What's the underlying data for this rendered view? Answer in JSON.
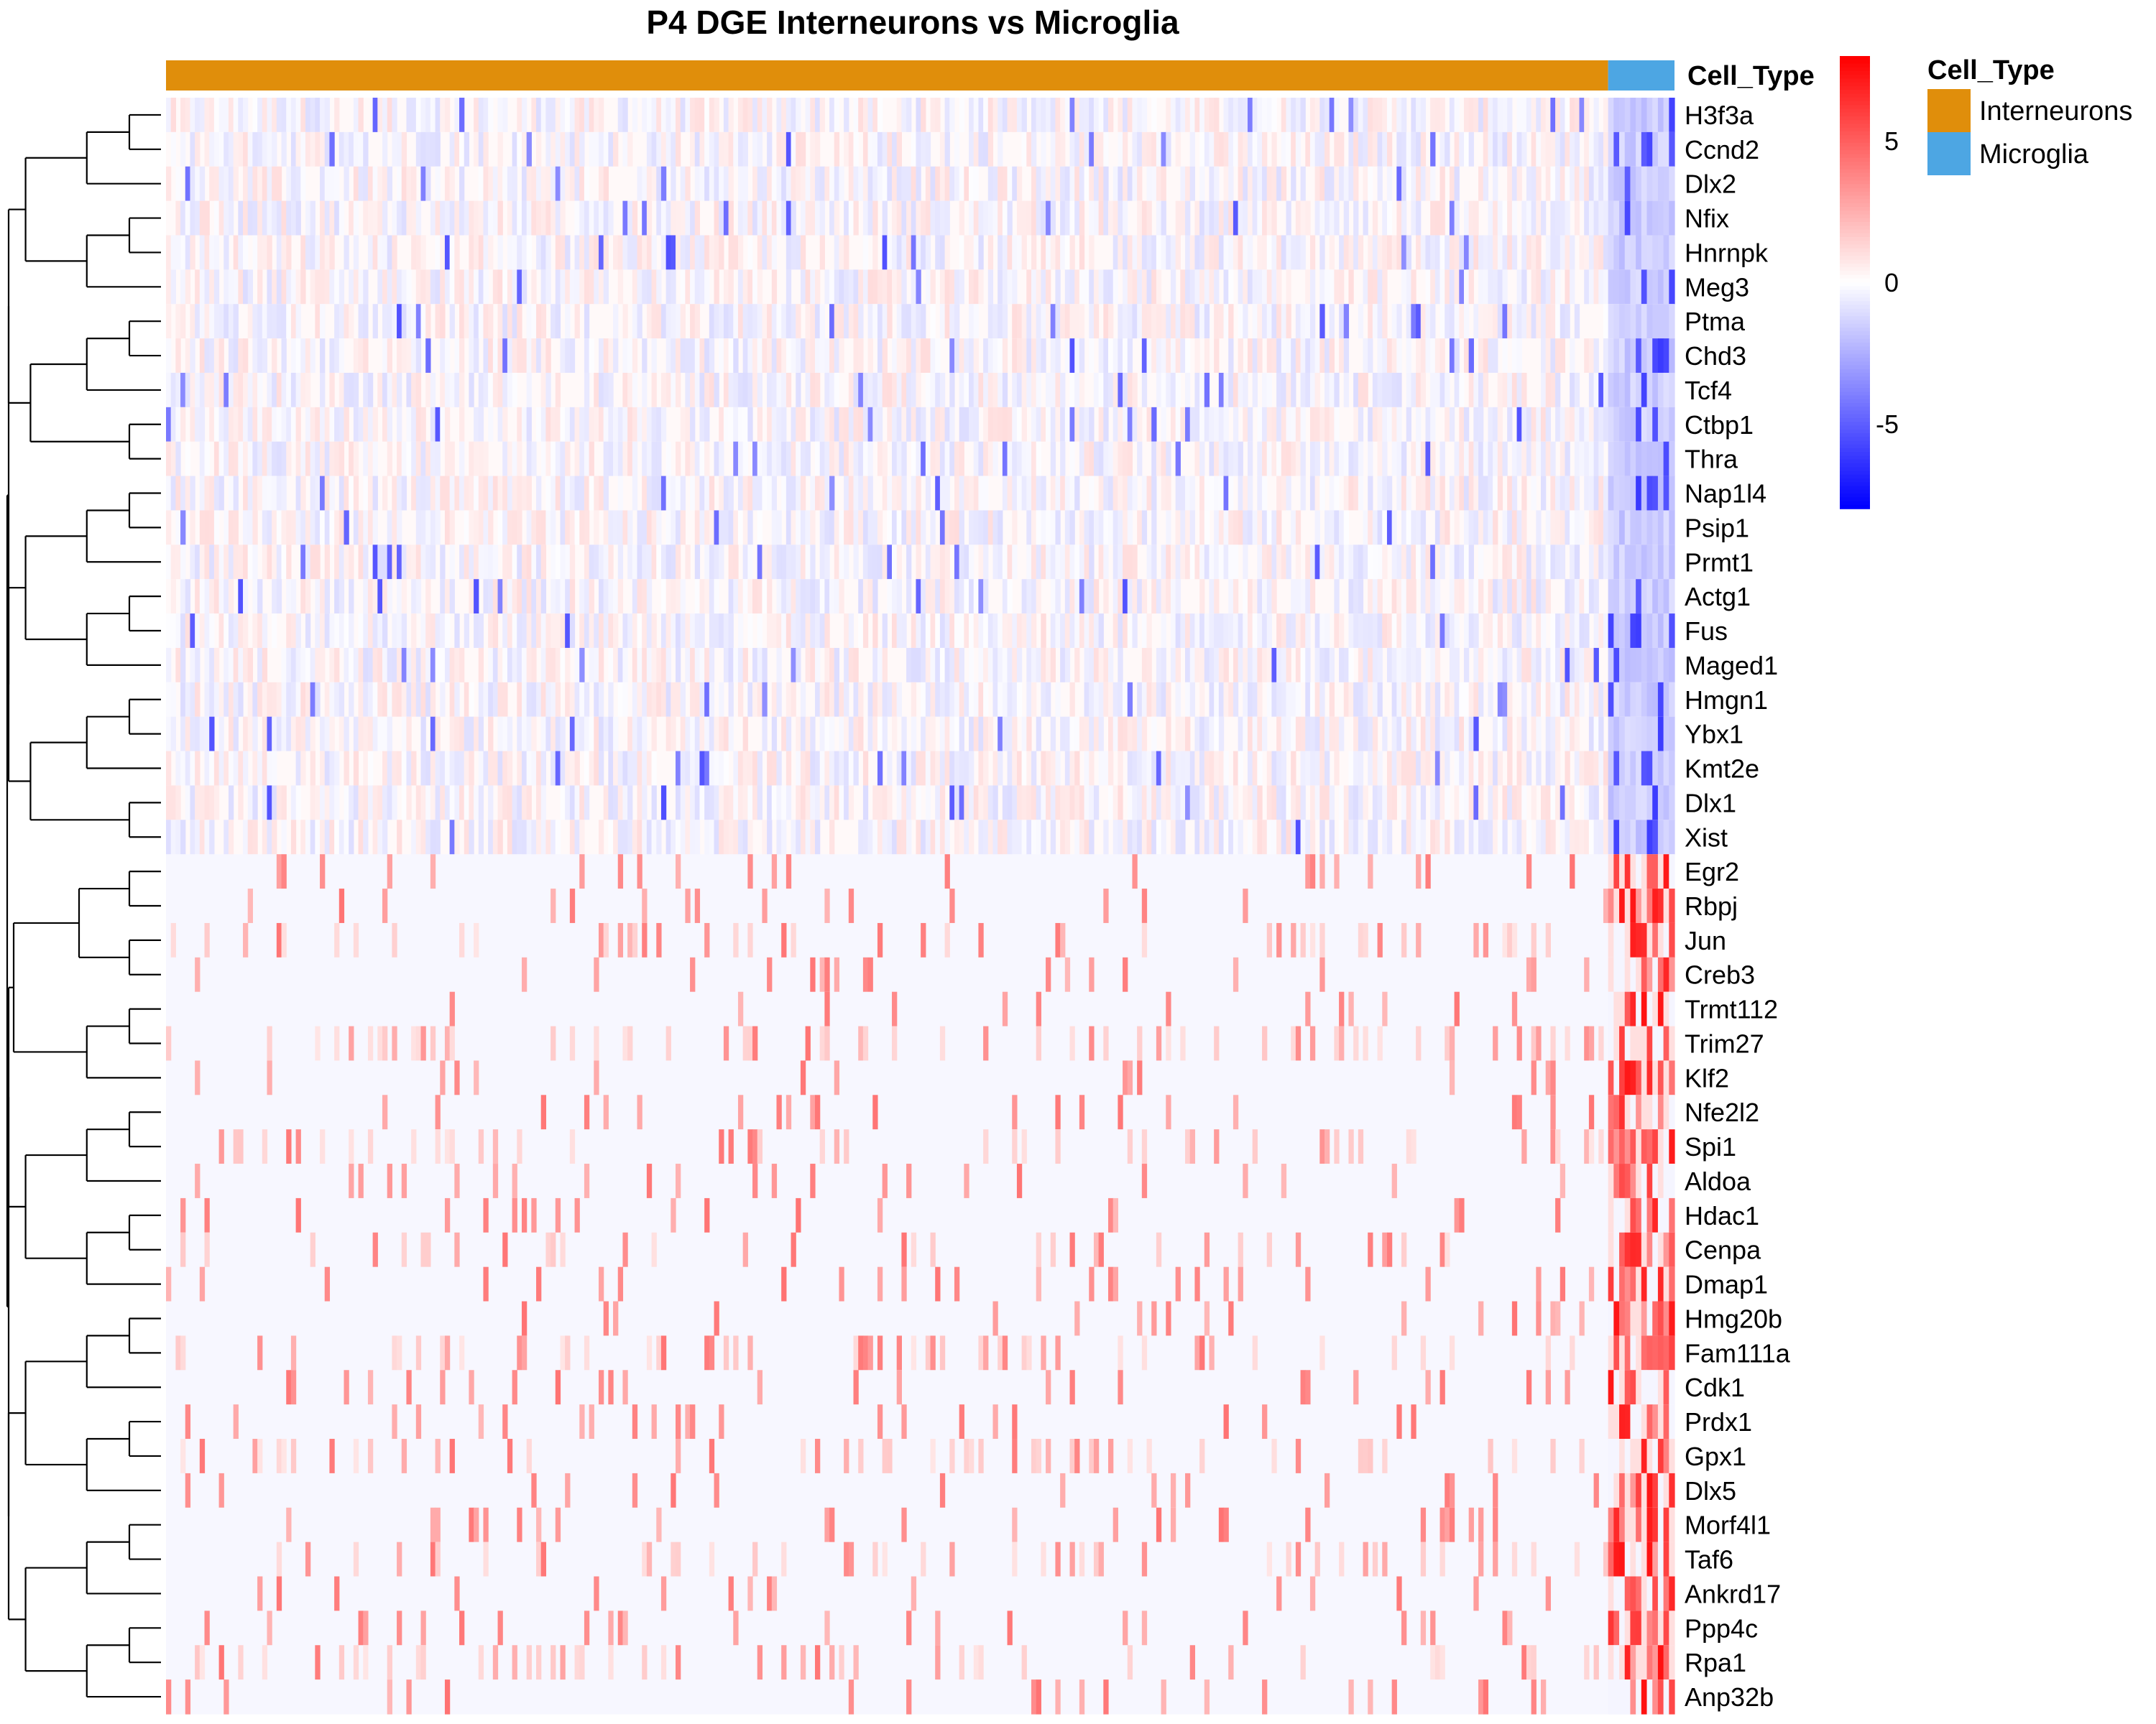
{
  "chart_data": {
    "type": "heatmap",
    "title": "P4 DGE Interneurons vs Microglia",
    "rows": [
      "H3f3a",
      "Ccnd2",
      "Dlx2",
      "Nfix",
      "Hnrnpk",
      "Meg3",
      "Ptma",
      "Chd3",
      "Tcf4",
      "Ctbp1",
      "Thra",
      "Nap1l4",
      "Psip1",
      "Prmt1",
      "Actg1",
      "Fus",
      "Maged1",
      "Hmgn1",
      "Ybx1",
      "Kmt2e",
      "Dlx1",
      "Xist",
      "Egr2",
      "Rbpj",
      "Jun",
      "Creb3",
      "Trmt112",
      "Trim27",
      "Klf2",
      "Nfe2l2",
      "Spi1",
      "Aldoa",
      "Hdac1",
      "Cenpa",
      "Dmap1",
      "Hmg20b",
      "Fam111a",
      "Cdk1",
      "Prdx1",
      "Gpx1",
      "Dlx5",
      "Morf4l1",
      "Taf6",
      "Ankrd17",
      "Ppp4c",
      "Rpa1",
      "Anp32b"
    ],
    "column_annotation": {
      "title": "Cell_Type",
      "groups": [
        {
          "name": "Interneurons",
          "color": "#E08E0B",
          "fraction": 0.956
        },
        {
          "name": "Microglia",
          "color": "#4DA6E3",
          "fraction": 0.044
        }
      ]
    },
    "colorscale": {
      "min": -8,
      "mid": 0,
      "max": 8,
      "colors": [
        "#0000FF",
        "#FFFFFF",
        "#FF0000"
      ],
      "ticks": [
        5,
        0,
        -5
      ]
    },
    "row_clusters": {
      "top_block_rows": 22,
      "bottom_block_rows": 25
    }
  }
}
